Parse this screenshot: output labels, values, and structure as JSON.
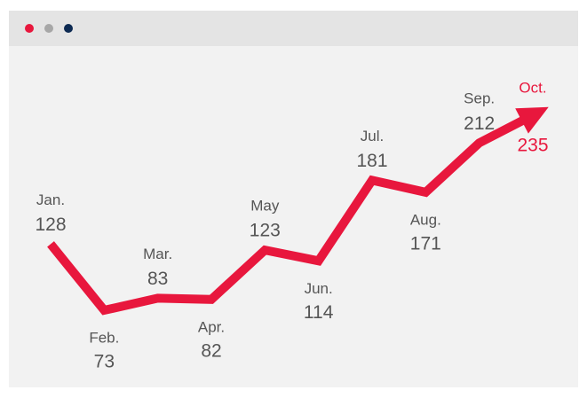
{
  "chart_data": {
    "type": "line",
    "categories": [
      "Jan.",
      "Feb.",
      "Mar.",
      "Apr.",
      "May",
      "Jun.",
      "Jul.",
      "Aug.",
      "Sep.",
      "Oct."
    ],
    "values": [
      128,
      73,
      83,
      82,
      123,
      114,
      181,
      171,
      212,
      235
    ],
    "color": "#e8173d"
  }
}
